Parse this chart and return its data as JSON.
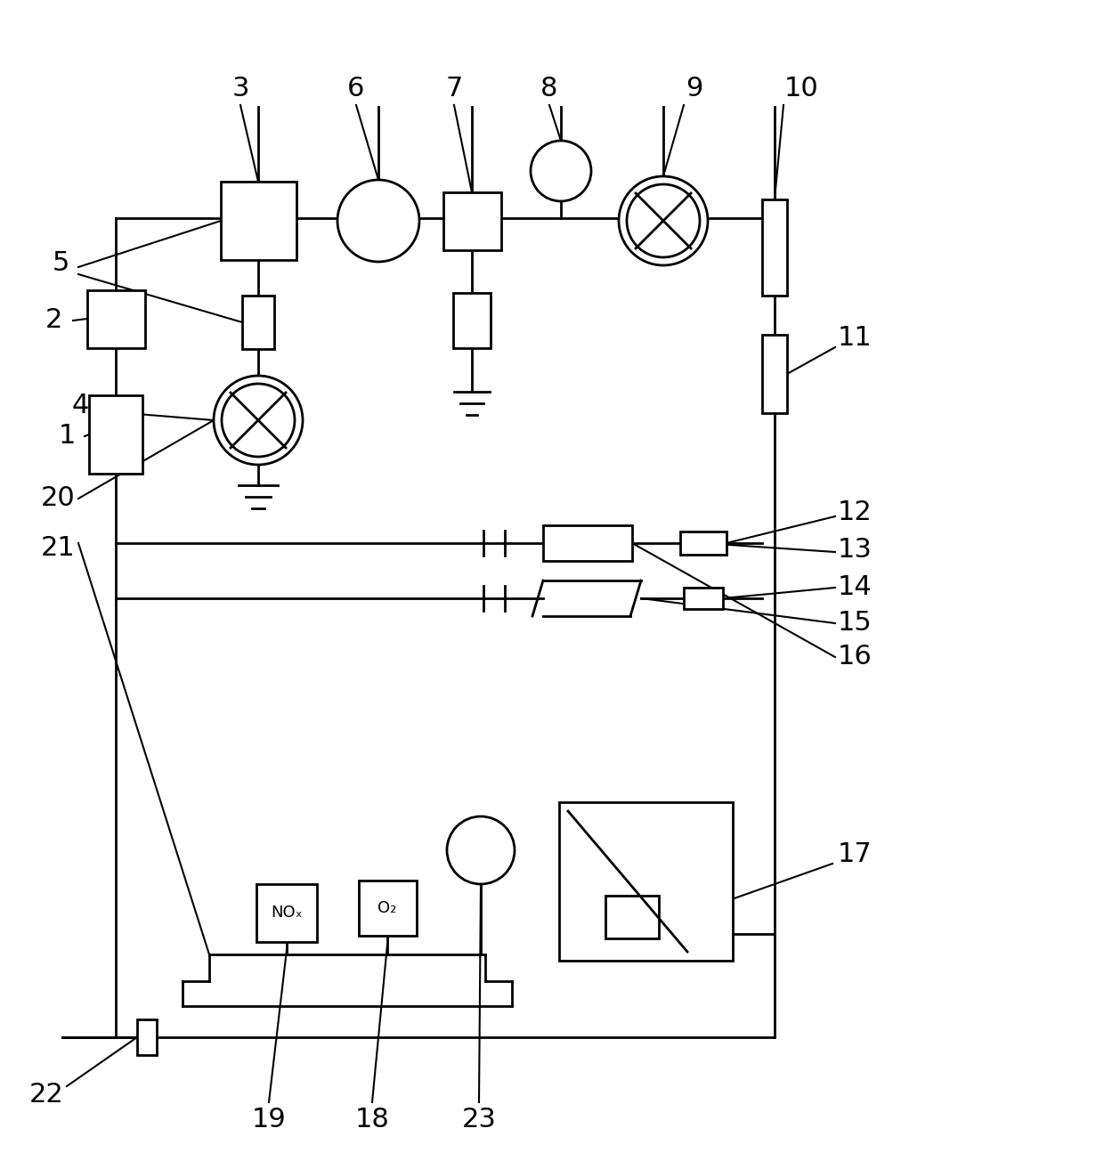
{
  "bg_color": "#ffffff",
  "line_color": "#000000",
  "lw": 2.0,
  "fig_width": 12.4,
  "fig_height": 13.13,
  "label_fontsize": 22
}
